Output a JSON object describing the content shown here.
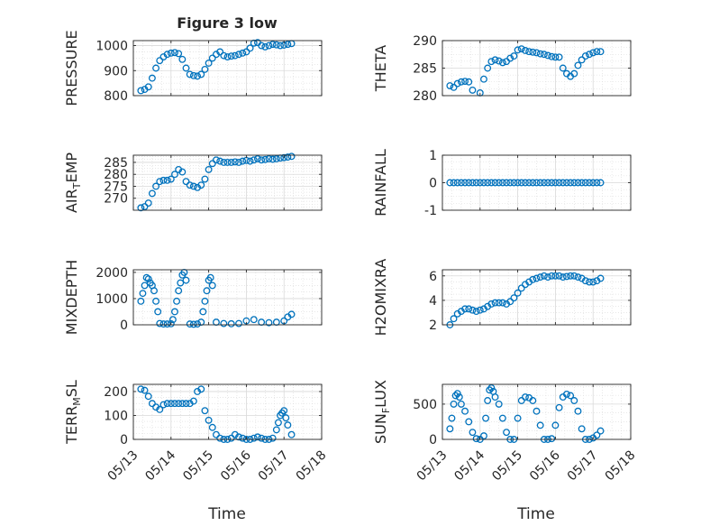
{
  "figure": {
    "title": "Figure 3 low",
    "xlabel": "Time",
    "marker_color": "#0072BD",
    "axis_color": "#262626",
    "grid_color": "#d9d9d9",
    "x_ticks": [
      "05/13",
      "05/14",
      "05/15",
      "05/16",
      "05/17",
      "05/18"
    ]
  },
  "chart_data": [
    {
      "type": "scatter",
      "ylabel": "PRESSURE",
      "ylim": [
        800,
        1020
      ],
      "yticks": [
        800,
        900,
        1000
      ],
      "xlim": [
        0,
        5
      ],
      "grid": true,
      "x": [
        0.2,
        0.3,
        0.4,
        0.5,
        0.6,
        0.7,
        0.8,
        0.9,
        1.0,
        1.1,
        1.2,
        1.3,
        1.4,
        1.5,
        1.6,
        1.7,
        1.8,
        1.9,
        2.0,
        2.1,
        2.2,
        2.3,
        2.4,
        2.5,
        2.6,
        2.7,
        2.8,
        2.9,
        3.0,
        3.1,
        3.2,
        3.3,
        3.4,
        3.5,
        3.6,
        3.7,
        3.8,
        3.9,
        4.0,
        4.1,
        4.2
      ],
      "y": [
        820,
        825,
        835,
        870,
        910,
        940,
        955,
        965,
        970,
        972,
        968,
        945,
        910,
        885,
        880,
        878,
        885,
        905,
        930,
        950,
        965,
        975,
        960,
        955,
        958,
        960,
        965,
        970,
        975,
        990,
        1010,
        1012,
        1000,
        995,
        1000,
        1005,
        1003,
        1000,
        1002,
        1005,
        1008
      ]
    },
    {
      "type": "scatter",
      "ylabel": "THETA",
      "ylim": [
        280,
        290
      ],
      "yticks": [
        280,
        285,
        290
      ],
      "xlim": [
        0,
        5
      ],
      "grid": true,
      "x": [
        0.2,
        0.3,
        0.4,
        0.5,
        0.6,
        0.7,
        0.8,
        0.9,
        1.0,
        1.1,
        1.2,
        1.3,
        1.4,
        1.5,
        1.6,
        1.7,
        1.8,
        1.9,
        2.0,
        2.1,
        2.2,
        2.3,
        2.4,
        2.5,
        2.6,
        2.7,
        2.8,
        2.9,
        3.0,
        3.1,
        3.2,
        3.3,
        3.4,
        3.5,
        3.6,
        3.7,
        3.8,
        3.9,
        4.0,
        4.1,
        4.2
      ],
      "y": [
        281.8,
        281.5,
        282.2,
        282.5,
        282.6,
        282.5,
        281,
        279.8,
        280.5,
        283,
        285,
        286.2,
        286.5,
        286.3,
        286,
        286.2,
        286.8,
        287.2,
        288.3,
        288.5,
        288.2,
        288,
        287.9,
        287.8,
        287.6,
        287.5,
        287.3,
        287.1,
        287,
        287,
        285,
        284,
        283.5,
        284,
        285.5,
        286.5,
        287.2,
        287.5,
        287.8,
        288,
        288
      ]
    },
    {
      "type": "scatter",
      "ylabel": "AIR_TEMP",
      "ylim": [
        265,
        288
      ],
      "yticks": [
        270,
        275,
        280,
        285
      ],
      "xlim": [
        0,
        5
      ],
      "grid": true,
      "x": [
        0.2,
        0.3,
        0.4,
        0.5,
        0.6,
        0.7,
        0.8,
        0.9,
        1.0,
        1.1,
        1.2,
        1.3,
        1.4,
        1.5,
        1.6,
        1.7,
        1.8,
        1.9,
        2.0,
        2.1,
        2.2,
        2.3,
        2.4,
        2.5,
        2.6,
        2.7,
        2.8,
        2.9,
        3.0,
        3.1,
        3.2,
        3.3,
        3.4,
        3.5,
        3.6,
        3.7,
        3.8,
        3.9,
        4.0,
        4.1,
        4.2
      ],
      "y": [
        266,
        266.5,
        268,
        272,
        275,
        277,
        277.5,
        277.5,
        278,
        280,
        282,
        281,
        277,
        275.5,
        275,
        274.5,
        275.5,
        278,
        282,
        284.5,
        286,
        285.5,
        285,
        285,
        285,
        285.2,
        285,
        285.5,
        285.8,
        285.5,
        286,
        286.5,
        286,
        286.2,
        286.5,
        286.3,
        286.5,
        286.8,
        287,
        287.2,
        287.5
      ]
    },
    {
      "type": "scatter",
      "ylabel": "RAINFALL",
      "ylim": [
        -1,
        1
      ],
      "yticks": [
        -1,
        0,
        1
      ],
      "xlim": [
        0,
        5
      ],
      "grid": true,
      "x": [
        0.2,
        0.3,
        0.4,
        0.5,
        0.6,
        0.7,
        0.8,
        0.9,
        1.0,
        1.1,
        1.2,
        1.3,
        1.4,
        1.5,
        1.6,
        1.7,
        1.8,
        1.9,
        2.0,
        2.1,
        2.2,
        2.3,
        2.4,
        2.5,
        2.6,
        2.7,
        2.8,
        2.9,
        3.0,
        3.1,
        3.2,
        3.3,
        3.4,
        3.5,
        3.6,
        3.7,
        3.8,
        3.9,
        4.0,
        4.1,
        4.2
      ],
      "y": [
        0,
        0,
        0,
        0,
        0,
        0,
        0,
        0,
        0,
        0,
        0,
        0,
        0,
        0,
        0,
        0,
        0,
        0,
        0,
        0,
        0,
        0,
        0,
        0,
        0,
        0,
        0,
        0,
        0,
        0,
        0,
        0,
        0,
        0,
        0,
        0,
        0,
        0,
        0,
        0,
        0
      ]
    },
    {
      "type": "scatter",
      "ylabel": "MIXDEPTH",
      "ylim": [
        0,
        2100
      ],
      "yticks": [
        0,
        1000,
        2000
      ],
      "xlim": [
        0,
        5
      ],
      "grid": true,
      "x": [
        0.2,
        0.25,
        0.3,
        0.35,
        0.4,
        0.45,
        0.5,
        0.55,
        0.6,
        0.65,
        0.7,
        0.8,
        0.9,
        1.0,
        1.05,
        1.1,
        1.15,
        1.2,
        1.25,
        1.3,
        1.35,
        1.4,
        1.5,
        1.6,
        1.7,
        1.8,
        1.85,
        1.9,
        1.95,
        2.0,
        2.05,
        2.1,
        2.2,
        2.4,
        2.6,
        2.8,
        3.0,
        3.2,
        3.4,
        3.6,
        3.8,
        4.0,
        4.1,
        4.2
      ],
      "y": [
        900,
        1200,
        1500,
        1800,
        1750,
        1600,
        1500,
        1300,
        900,
        500,
        50,
        30,
        30,
        40,
        200,
        500,
        900,
        1300,
        1600,
        1900,
        2000,
        1700,
        30,
        20,
        30,
        100,
        500,
        900,
        1300,
        1700,
        1800,
        1500,
        100,
        50,
        40,
        50,
        150,
        200,
        100,
        80,
        100,
        150,
        300,
        400
      ]
    },
    {
      "type": "scatter",
      "ylabel": "H2OMIXRA",
      "ylim": [
        2,
        6.5
      ],
      "yticks": [
        2,
        4,
        6
      ],
      "xlim": [
        0,
        5
      ],
      "grid": true,
      "x": [
        0.2,
        0.3,
        0.4,
        0.5,
        0.6,
        0.7,
        0.8,
        0.9,
        1.0,
        1.1,
        1.2,
        1.3,
        1.4,
        1.5,
        1.6,
        1.7,
        1.8,
        1.9,
        2.0,
        2.1,
        2.2,
        2.3,
        2.4,
        2.5,
        2.6,
        2.7,
        2.8,
        2.9,
        3.0,
        3.1,
        3.2,
        3.3,
        3.4,
        3.5,
        3.6,
        3.7,
        3.8,
        3.9,
        4.0,
        4.1,
        4.2
      ],
      "y": [
        2.0,
        2.5,
        2.9,
        3.1,
        3.3,
        3.3,
        3.2,
        3.1,
        3.2,
        3.3,
        3.5,
        3.7,
        3.8,
        3.8,
        3.8,
        3.7,
        3.9,
        4.2,
        4.6,
        5.0,
        5.3,
        5.5,
        5.7,
        5.8,
        5.9,
        6.0,
        5.9,
        6.0,
        6.0,
        6.0,
        5.9,
        5.95,
        6.0,
        6.0,
        5.9,
        5.8,
        5.6,
        5.5,
        5.5,
        5.6,
        5.8
      ]
    },
    {
      "type": "scatter",
      "ylabel": "TERR_MSL",
      "ylim": [
        0,
        230
      ],
      "yticks": [
        0,
        100,
        200
      ],
      "xlim": [
        0,
        5
      ],
      "grid": true,
      "x": [
        0.2,
        0.3,
        0.4,
        0.5,
        0.6,
        0.7,
        0.8,
        0.9,
        1.0,
        1.1,
        1.2,
        1.3,
        1.4,
        1.5,
        1.6,
        1.7,
        1.8,
        1.9,
        2.0,
        2.1,
        2.2,
        2.3,
        2.4,
        2.5,
        2.6,
        2.7,
        2.8,
        2.9,
        3.0,
        3.1,
        3.2,
        3.3,
        3.4,
        3.5,
        3.6,
        3.7,
        3.8,
        3.85,
        3.9,
        3.95,
        4.0,
        4.05,
        4.1,
        4.2
      ],
      "y": [
        210,
        205,
        180,
        150,
        135,
        125,
        145,
        150,
        150,
        150,
        150,
        150,
        150,
        150,
        160,
        200,
        210,
        120,
        80,
        50,
        20,
        5,
        0,
        0,
        5,
        20,
        10,
        5,
        0,
        0,
        5,
        10,
        5,
        0,
        0,
        5,
        40,
        70,
        100,
        110,
        120,
        90,
        60,
        20
      ]
    },
    {
      "type": "scatter",
      "ylabel": "SUN_FLUX",
      "ylim": [
        0,
        780
      ],
      "yticks": [
        0,
        500
      ],
      "xlim": [
        0,
        5
      ],
      "grid": true,
      "x": [
        0.2,
        0.25,
        0.3,
        0.35,
        0.4,
        0.45,
        0.5,
        0.6,
        0.7,
        0.8,
        0.9,
        1.0,
        1.1,
        1.15,
        1.2,
        1.25,
        1.3,
        1.35,
        1.4,
        1.5,
        1.6,
        1.7,
        1.8,
        1.9,
        2.0,
        2.1,
        2.2,
        2.3,
        2.4,
        2.5,
        2.6,
        2.7,
        2.8,
        2.9,
        3.0,
        3.1,
        3.2,
        3.3,
        3.4,
        3.5,
        3.6,
        3.7,
        3.8,
        3.9,
        4.0,
        4.1,
        4.2
      ],
      "y": [
        150,
        300,
        500,
        620,
        650,
        600,
        500,
        400,
        250,
        100,
        10,
        0,
        50,
        300,
        550,
        700,
        730,
        680,
        600,
        500,
        300,
        100,
        0,
        0,
        300,
        550,
        600,
        590,
        550,
        400,
        200,
        0,
        0,
        10,
        200,
        450,
        600,
        640,
        620,
        550,
        400,
        150,
        0,
        0,
        20,
        60,
        120
      ]
    }
  ]
}
